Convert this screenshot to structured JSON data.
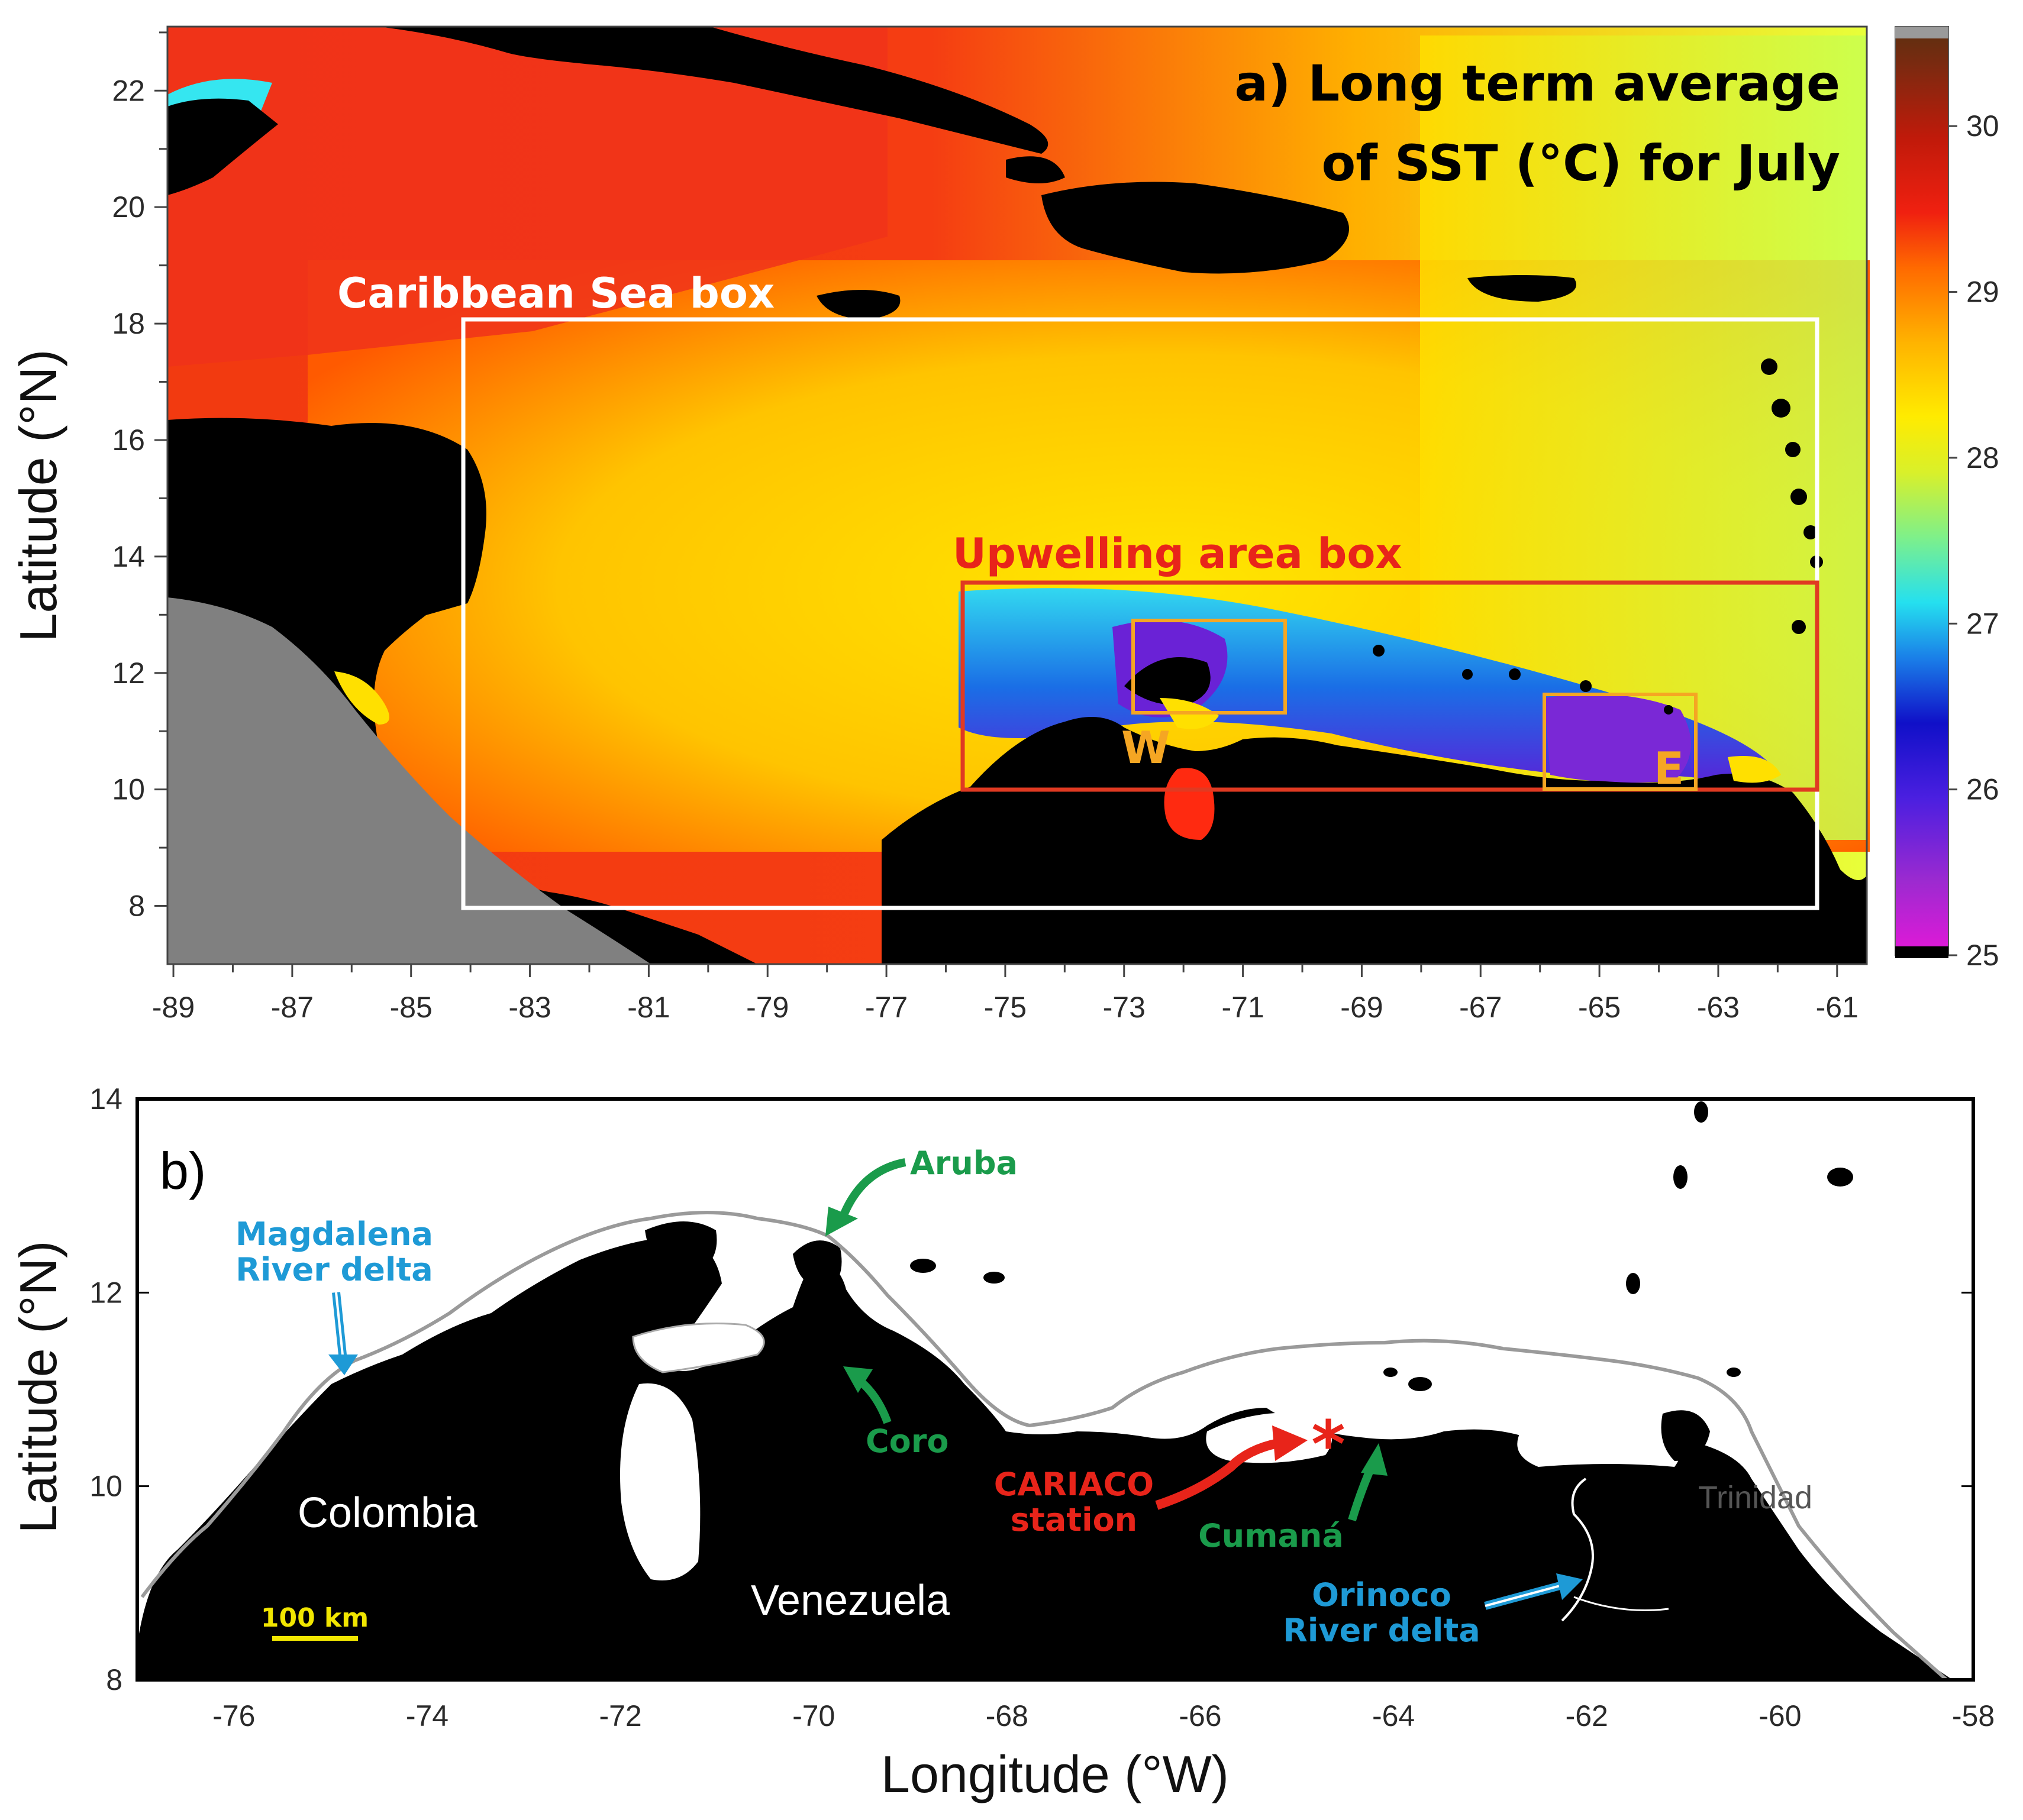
{
  "colors": {
    "land": "#000000",
    "outside_domain": "#808080",
    "caribbean_box": "#ffffff",
    "upwelling_box": "#e03a22",
    "subbox": "#f5a623",
    "sea_label": "#ffffff",
    "upwelling_label": "#e8241a",
    "subbox_label": "#f5a623",
    "place_green": "#1a9b4b",
    "river_blue": "#1e9ad6",
    "cariaco_red": "#e8241a",
    "scalebar": "#f1e600"
  },
  "panel_a": {
    "title_line1": "a) Long term average",
    "title_line2": "of SST (°C) for July",
    "y_axis_label": "Latitude (°N)",
    "x_ticks": [
      "-89",
      "-87",
      "-85",
      "-83",
      "-81",
      "-79",
      "-77",
      "-75",
      "-73",
      "-71",
      "-69",
      "-67",
      "-65",
      "-63",
      "-61"
    ],
    "y_ticks": [
      "8",
      "10",
      "12",
      "14",
      "16",
      "18",
      "20",
      "22"
    ],
    "labels": {
      "caribbean_box": "Caribbean Sea box",
      "upwelling_box": "Upwelling area box",
      "west_box": "W",
      "east_box": "E"
    },
    "colorbar": {
      "ticks": [
        "25",
        "26",
        "27",
        "28",
        "29",
        "30"
      ],
      "min": 25,
      "max": 30.6
    },
    "boxes": [
      {
        "name": "caribbean-sea-box",
        "lon": [
          -84,
          -61
        ],
        "lat": [
          8,
          18
        ]
      },
      {
        "name": "upwelling-area-box",
        "lon": [
          -75.5,
          -61
        ],
        "lat": [
          10,
          13.5
        ]
      },
      {
        "name": "w-box",
        "lon": [
          -72.5,
          -70
        ],
        "lat": [
          11.3,
          12.9
        ]
      },
      {
        "name": "e-box",
        "lon": [
          -65.5,
          -63
        ],
        "lat": [
          10,
          11.6
        ]
      }
    ]
  },
  "panel_b": {
    "panel_label": "b)",
    "x_axis_label": "Longitude (°W)",
    "y_axis_label": "Latitude (°N)",
    "x_ticks": [
      "-76",
      "-74",
      "-72",
      "-70",
      "-68",
      "-66",
      "-64",
      "-62",
      "-60",
      "-58"
    ],
    "y_ticks": [
      "8",
      "10",
      "12",
      "14"
    ],
    "places": {
      "aruba": "Aruba",
      "magdalena_line1": "Magdalena",
      "magdalena_line2": "River delta",
      "coro": "Coro",
      "colombia": "Colombia",
      "venezuela": "Venezuela",
      "cariaco_line1": "CARIACO",
      "cariaco_line2": "station",
      "cumana": "Cumaná",
      "trinidad": "Trinidad",
      "orinoco_line1": "Orinoco",
      "orinoco_line2": "River delta",
      "scalebar": "100 km"
    }
  }
}
